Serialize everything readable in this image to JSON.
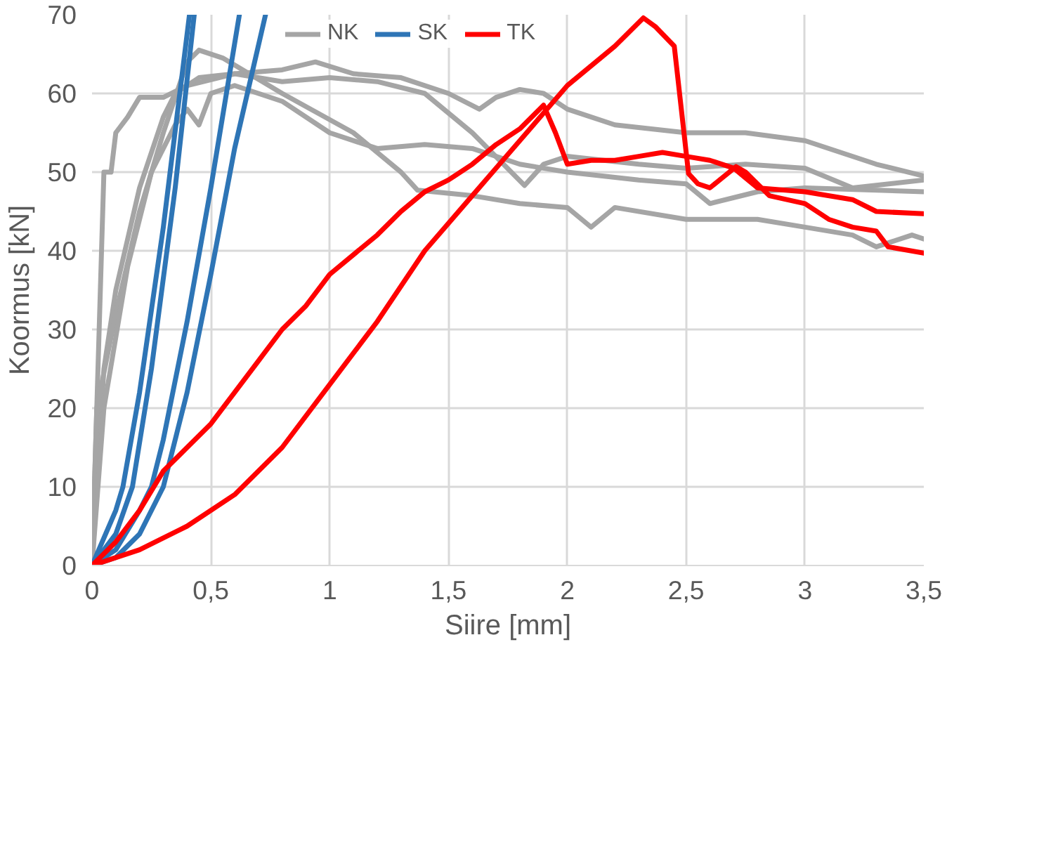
{
  "chart_data": {
    "type": "line",
    "xlabel": "Siire [mm]",
    "ylabel": "Koormus [kN]",
    "xlim": [
      0,
      3.5
    ],
    "ylim": [
      0,
      70
    ],
    "xticks": [
      0,
      {
        "value": 0.5,
        "label": "0,5"
      },
      1,
      {
        "value": 1.5,
        "label": "1,5"
      },
      2,
      {
        "value": 2.5,
        "label": "2,5"
      },
      3,
      {
        "value": 3.5,
        "label": "3,5"
      }
    ],
    "yticks": [
      0,
      10,
      20,
      30,
      40,
      50,
      60,
      70
    ],
    "grid": true,
    "legend": "top",
    "line_style": "solid",
    "marker": "none",
    "series": [
      {
        "name": "NK",
        "color": "#a5a5a5",
        "x": [
          0,
          0.03,
          0.05,
          0.08,
          0.1,
          0.15,
          0.2,
          0.3,
          0.4,
          0.6,
          0.8,
          0.94,
          1.1,
          1.3,
          1.5,
          1.63,
          1.7,
          1.8,
          1.9,
          2.0,
          2.2,
          2.5,
          2.75,
          3.0,
          3.3,
          3.5
        ],
        "values": [
          0,
          30,
          50,
          50,
          55,
          57,
          59.5,
          59.5,
          61,
          62.5,
          63,
          64,
          62.5,
          62,
          60,
          58,
          59.5,
          60.5,
          60,
          58,
          56,
          55,
          55,
          54,
          51,
          49.5
        ]
      },
      {
        "color": "#a5a5a5",
        "x": [
          0,
          0.05,
          0.1,
          0.2,
          0.3,
          0.35,
          0.45,
          0.6,
          0.8,
          1.0,
          1.2,
          1.4,
          1.6,
          1.82,
          1.9,
          2.0,
          2.3,
          2.5,
          2.75,
          3.0,
          3.2,
          3.5
        ],
        "values": [
          0,
          25,
          35,
          48,
          57,
          60,
          62,
          62.5,
          61.5,
          62,
          61.5,
          60,
          55,
          48.3,
          51,
          52,
          51,
          50.5,
          51,
          50.5,
          48,
          49
        ]
      },
      {
        "color": "#a5a5a5",
        "x": [
          0,
          0.02,
          0.1,
          0.2,
          0.3,
          0.4,
          0.45,
          0.55,
          0.8,
          1.1,
          1.3,
          1.37,
          1.6,
          1.8,
          2.0,
          2.1,
          2.2,
          2.5,
          2.8,
          3.0,
          3.2,
          3.3,
          3.45,
          3.5
        ],
        "values": [
          0,
          20,
          32,
          45,
          55,
          64,
          65.5,
          64.5,
          60,
          55,
          50,
          47.7,
          47,
          46,
          45.5,
          43,
          45.5,
          44,
          44,
          43,
          42,
          40.5,
          42,
          41.5
        ]
      },
      {
        "color": "#a5a5a5",
        "x": [
          0,
          0.05,
          0.15,
          0.25,
          0.35,
          0.4,
          0.45,
          0.5,
          0.6,
          0.8,
          1.0,
          1.2,
          1.4,
          1.6,
          1.8,
          2.0,
          2.3,
          2.5,
          2.6,
          2.8,
          3.0,
          3.5
        ],
        "values": [
          0,
          20,
          38,
          50,
          56,
          58,
          56,
          60,
          61,
          59,
          55,
          53,
          53.5,
          53,
          51,
          50,
          49,
          48.5,
          46,
          47.5,
          48,
          47.5
        ]
      },
      {
        "name": "SK",
        "color": "#2e75b6",
        "x": [
          0,
          0.1,
          0.13,
          0.2,
          0.3,
          0.41
        ],
        "values": [
          0,
          7,
          10,
          22,
          43,
          70
        ]
      },
      {
        "color": "#2e75b6",
        "x": [
          0,
          0.1,
          0.17,
          0.25,
          0.35,
          0.43
        ],
        "values": [
          0,
          4,
          10,
          25,
          48,
          70
        ]
      },
      {
        "color": "#2e75b6",
        "x": [
          0,
          0.1,
          0.2,
          0.25,
          0.3,
          0.4,
          0.5,
          0.62
        ],
        "values": [
          0,
          2,
          7,
          10,
          16,
          31,
          48,
          70
        ]
      },
      {
        "color": "#2e75b6",
        "x": [
          0,
          0.1,
          0.2,
          0.3,
          0.4,
          0.5,
          0.6,
          0.73
        ],
        "values": [
          0,
          1,
          4,
          10,
          22,
          37,
          53,
          70
        ]
      },
      {
        "name": "TK",
        "color": "#ff0000",
        "x": [
          0,
          0.1,
          0.2,
          0.3,
          0.4,
          0.5,
          0.6,
          0.7,
          0.8,
          0.9,
          1.0,
          1.2,
          1.3,
          1.4,
          1.5,
          1.6,
          1.7,
          1.8,
          1.9,
          1.95,
          2.0,
          2.1,
          2.2,
          2.3,
          2.4,
          2.5,
          2.6,
          2.7,
          2.8,
          3.0,
          3.2,
          3.3,
          3.5
        ],
        "values": [
          0,
          3,
          7,
          12,
          15,
          18,
          22,
          26,
          30,
          33,
          37,
          42,
          45,
          47.5,
          49,
          51,
          53.5,
          55.5,
          58.5,
          55,
          51,
          51.5,
          51.5,
          52,
          52.5,
          52,
          51.5,
          50.5,
          48,
          47.5,
          46.5,
          45,
          44.7
        ]
      },
      {
        "color": "#ff0000",
        "x": [
          0,
          0.2,
          0.4,
          0.6,
          0.8,
          1.0,
          1.2,
          1.4,
          1.6,
          1.8,
          2.0,
          2.1,
          2.2,
          2.32,
          2.37,
          2.45,
          2.51,
          2.55,
          2.6,
          2.71,
          2.75,
          2.85,
          3.0,
          3.1,
          3.2,
          3.3,
          3.35,
          3.5
        ],
        "values": [
          0,
          2,
          5,
          9,
          15,
          23,
          31,
          40,
          47,
          54,
          61,
          63.5,
          66,
          69.6,
          68.5,
          66,
          49.8,
          48.5,
          48,
          50.7,
          50,
          47,
          46,
          44,
          43,
          42.5,
          40.5,
          39.7
        ]
      }
    ]
  }
}
